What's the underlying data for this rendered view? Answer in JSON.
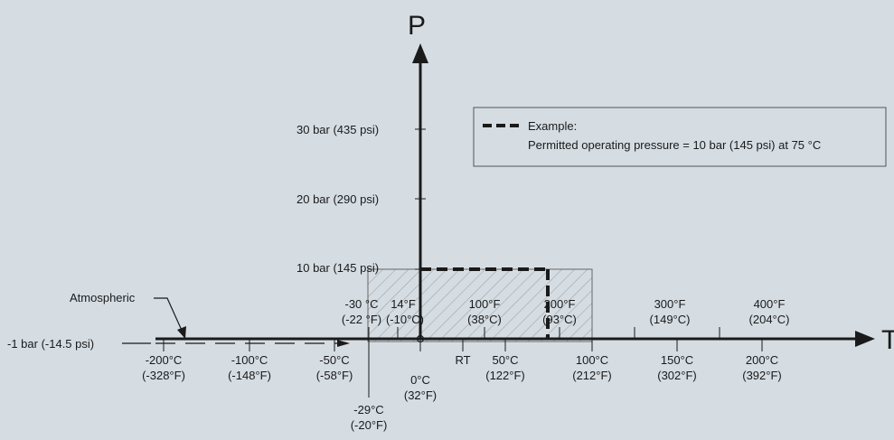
{
  "colors": {
    "background": "#d5dde3",
    "axis": "#1a1a1a",
    "hatch": "#9aa6ae"
  },
  "axes": {
    "p_label": "P",
    "t_label": "T"
  },
  "atmospheric": {
    "label": "Atmospheric",
    "level": "-1 bar (-14.5 psi)"
  },
  "pressure_ticks": [
    {
      "label": "30 bar (435 psi)",
      "bar": 30
    },
    {
      "label": "20 bar (290 psi)",
      "bar": 20
    },
    {
      "label": "10 bar (145 psi)",
      "bar": 10
    }
  ],
  "temp_below": [
    {
      "c": "-200°C",
      "f": "(-328°F)"
    },
    {
      "c": "-100°C",
      "f": "(-148°F)"
    },
    {
      "c": "-50°C",
      "f": "(-58°F)"
    },
    {
      "c": "0°C",
      "f": "(32°F)"
    },
    {
      "c": "RT",
      "f": ""
    },
    {
      "c": "50°C",
      "f": "(122°F)"
    },
    {
      "c": "100°C",
      "f": "(212°F)"
    },
    {
      "c": "150°C",
      "f": "(302°F)"
    },
    {
      "c": "200°C",
      "f": "(392°F)"
    }
  ],
  "temp_minus29": {
    "c": "-29°C",
    "f": "(-20°F)"
  },
  "temp_above": [
    {
      "top": "-30 °C",
      "bottom": "(-22 °F)"
    },
    {
      "top": "14°F",
      "bottom": "(-10°C)"
    },
    {
      "top": "100°F",
      "bottom": "(38°C)"
    },
    {
      "top": "200°F",
      "bottom": "(93°C)"
    },
    {
      "top": "300°F",
      "bottom": "(149°C)"
    },
    {
      "top": "400°F",
      "bottom": "(204°C)"
    }
  ],
  "legend": {
    "title": "Example:",
    "text": "Permitted operating pressure = 10 bar (145 psi) at 75 °C"
  }
}
